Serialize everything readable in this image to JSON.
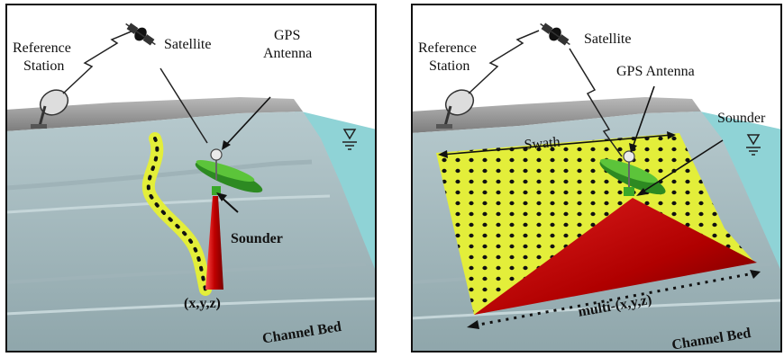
{
  "left_panel": {
    "reference_station": [
      "Reference",
      "Station"
    ],
    "satellite": "Satellite",
    "gps_antenna": [
      "GPS",
      "Antenna"
    ],
    "sounder": "Sounder",
    "point": "(x,y,z)",
    "channel_bed": "Channel Bed"
  },
  "right_panel": {
    "reference_station": [
      "Reference",
      "Station"
    ],
    "satellite": "Satellite",
    "gps_antenna": "GPS Antenna",
    "sounder": "Sounder",
    "swath": "Swath",
    "points": "multi-(x,y,z)",
    "channel_bed": "Channel Bed"
  },
  "colors": {
    "channel_surface": "#a9bfc4",
    "water": "#8fd3d6",
    "bank_top": "#8c8c8c",
    "swath_fill": "#e3ee3a",
    "beam_red": "#c01010",
    "boat_green": "#3a9a2a"
  }
}
